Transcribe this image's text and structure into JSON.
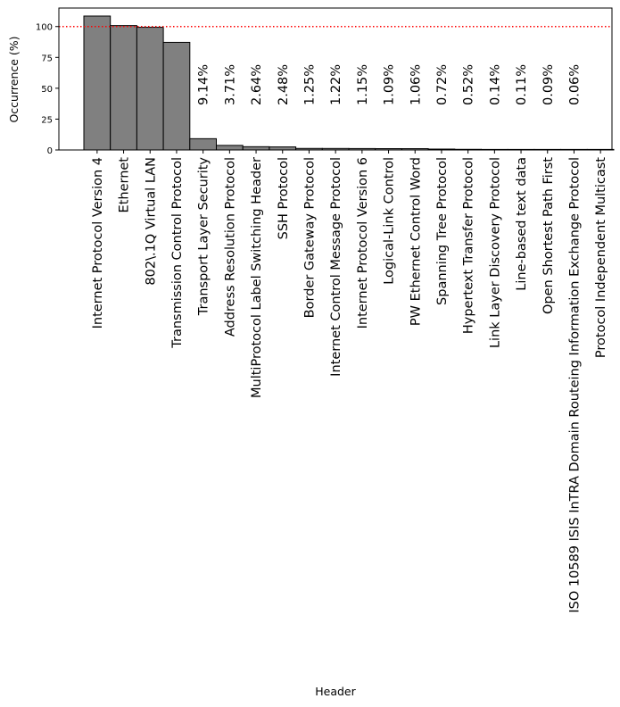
{
  "chart_data": {
    "type": "bar",
    "xlabel": "Header",
    "ylabel": "Occurrence (%)",
    "ylim": [
      0,
      115
    ],
    "yticks": [
      "0",
      "25",
      "50",
      "75",
      "100"
    ],
    "reference_line": {
      "value": 100,
      "color": "#ff0000",
      "style": "dotted"
    },
    "bar_color": "#808080",
    "edge_color": "#000000",
    "grid": false,
    "categories": [
      "Internet Protocol Version 4",
      "Ethernet",
      "802\\.1Q Virtual LAN",
      "Transmission Control Protocol",
      "Transport Layer Security",
      "Address Resolution Protocol",
      "MultiProtocol Label Switching Header",
      "SSH Protocol",
      "Border Gateway Protocol",
      "Internet Control Message Protocol",
      "Internet Protocol Version 6",
      "Logical-Link Control",
      "PW Ethernet Control Word",
      "Spanning Tree Protocol",
      "Hypertext Transfer Protocol",
      "Link Layer Discovery Protocol",
      "Line-based text data",
      "Open Shortest Path First",
      "ISO 10589 ISIS InTRA Domain Routeing Information Exchange Protocol",
      "Protocol Independent Multicast"
    ],
    "values": [
      108.5,
      100.8,
      99.4,
      87.2,
      9.14,
      3.71,
      2.64,
      2.48,
      1.25,
      1.22,
      1.15,
      1.09,
      1.06,
      0.72,
      0.52,
      0.14,
      0.11,
      0.09,
      0.06,
      0.03
    ],
    "data_labels": [
      "",
      "",
      "",
      "",
      "9.14%",
      "3.71%",
      "2.64%",
      "2.48%",
      "1.25%",
      "1.22%",
      "1.15%",
      "1.09%",
      "1.06%",
      "0.72%",
      "0.52%",
      "0.14%",
      "0.11%",
      "0.09%",
      "0.06%",
      ""
    ]
  }
}
